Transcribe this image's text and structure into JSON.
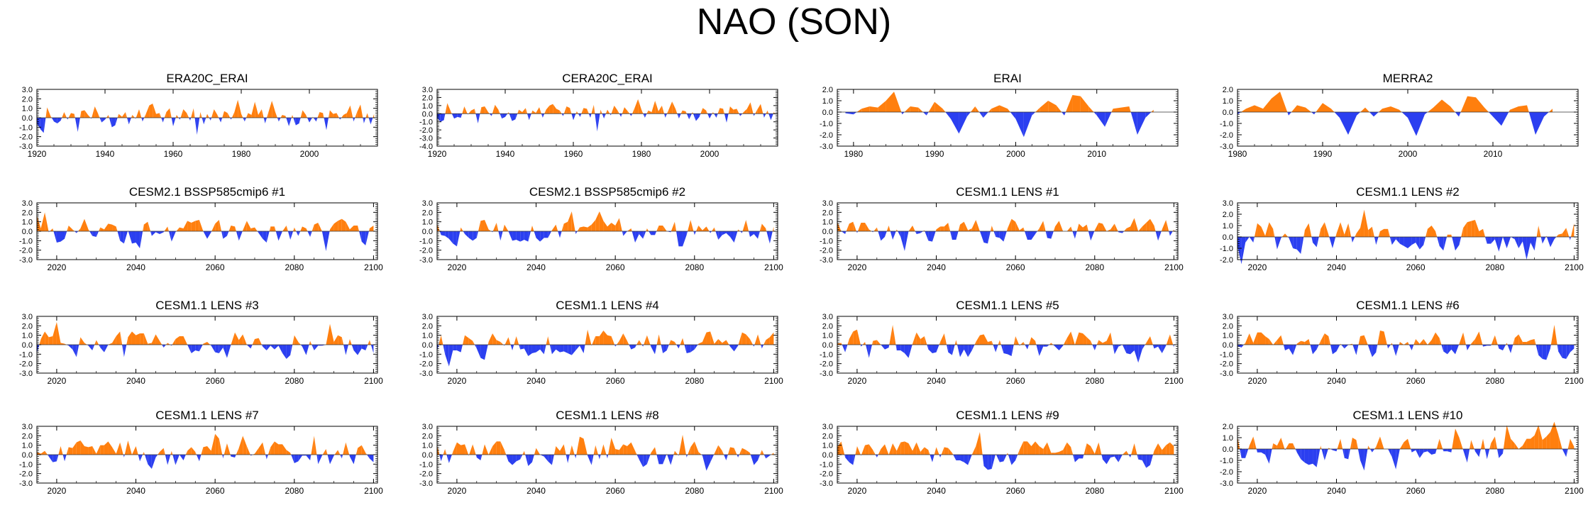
{
  "title": "NAO (SON)",
  "colors": {
    "positive": "#ff7f0e",
    "negative": "#2b3ff0",
    "axis": "#000000"
  },
  "chart_data": [
    {
      "type": "area",
      "title": "ERA20C_ERAI",
      "xlim": [
        1920,
        2020
      ],
      "xticks": [
        "1920",
        "1940",
        "1960",
        "1980",
        "2000"
      ],
      "ylim": [
        -3,
        3
      ],
      "yticks": [
        "3.0",
        "2.0",
        "1.0",
        "0.0",
        "-1.0",
        "-2.0",
        "-3.0"
      ],
      "x": [
        1920,
        1921,
        1922,
        1923,
        1924,
        1925,
        1926,
        1927,
        1928,
        1929,
        1930,
        1931,
        1932,
        1933,
        1934,
        1935,
        1936,
        1937,
        1938,
        1939,
        1940,
        1941,
        1942,
        1943,
        1944,
        1945,
        1946,
        1947,
        1948,
        1949,
        1950,
        1951,
        1952,
        1953,
        1954,
        1955,
        1956,
        1957,
        1958,
        1959,
        1960,
        1961,
        1962,
        1963,
        1964,
        1965,
        1966,
        1967,
        1968,
        1969,
        1970,
        1971,
        1972,
        1973,
        1974,
        1975,
        1976,
        1977,
        1978,
        1979,
        1980,
        1981,
        1982,
        1983,
        1984,
        1985,
        1986,
        1987,
        1988,
        1989,
        1990,
        1991,
        1992,
        1993,
        1994,
        1995,
        1996,
        1997,
        1998,
        1999,
        2000,
        2001,
        2002,
        2003,
        2004,
        2005,
        2006,
        2007,
        2008,
        2009,
        2010,
        2011,
        2012,
        2013,
        2014,
        2015,
        2016,
        2017,
        2018,
        2019
      ],
      "values": [
        -0.6,
        -1.2,
        -1.6,
        1.1,
        0.2,
        -0.4,
        -0.6,
        -0.3,
        0.6,
        -0.2,
        0.5,
        0.4,
        -1.5,
        0.7,
        0.8,
        0.3,
        -0.1,
        1.2,
        0.4,
        -0.5,
        -0.2,
        0.3,
        -1.0,
        -0.8,
        0.4,
        0.1,
        0.6,
        -0.7,
        0.3,
        -0.1,
        0.9,
        -0.4,
        0.4,
        1.3,
        1.5,
        0.4,
        0.5,
        -0.5,
        0.6,
        1.0,
        -0.9,
        0.3,
        -0.2,
        0.9,
        0.5,
        -0.3,
        1.0,
        -1.8,
        0.6,
        -0.7,
        0.4,
        -0.3,
        0.9,
        0.3,
        -0.5,
        0.7,
        0.5,
        -0.2,
        0.6,
        1.9,
        0.4,
        -0.4,
        0.5,
        0.3,
        1.7,
        0.3,
        0.9,
        -0.6,
        0.6,
        1.8,
        0.6,
        -0.4,
        0.3,
        0.2,
        -0.9,
        0.3,
        -0.8,
        -0.6,
        0.8,
        0.3,
        -0.5,
        0.1,
        -0.4,
        0.6,
        0.5,
        -1.3,
        0.8,
        0.4,
        0.5,
        -0.2,
        0.3,
        0.5,
        1.3,
        -0.4,
        0.6,
        1.4,
        -0.6,
        0.5,
        -0.7,
        0.4
      ]
    },
    {
      "type": "area",
      "title": "CERA20C_ERAI",
      "xlim": [
        1920,
        2020
      ],
      "xticks": [
        "1920",
        "1940",
        "1960",
        "1980",
        "2000"
      ],
      "ylim": [
        -4,
        3
      ],
      "yticks": [
        "3.0",
        "2.0",
        "1.0",
        "0.0",
        "-1.0",
        "-2.0",
        "-3.0",
        "-4.0"
      ],
      "x": [
        1920,
        1921,
        1922,
        1923,
        1924,
        1925,
        1926,
        1927,
        1928,
        1929,
        1930,
        1931,
        1932,
        1933,
        1934,
        1935,
        1936,
        1937,
        1938,
        1939,
        1940,
        1941,
        1942,
        1943,
        1944,
        1945,
        1946,
        1947,
        1948,
        1949,
        1950,
        1951,
        1952,
        1953,
        1954,
        1955,
        1956,
        1957,
        1958,
        1959,
        1960,
        1961,
        1962,
        1963,
        1964,
        1965,
        1966,
        1967,
        1968,
        1969,
        1970,
        1971,
        1972,
        1973,
        1974,
        1975,
        1976,
        1977,
        1978,
        1979,
        1980,
        1981,
        1982,
        1983,
        1984,
        1985,
        1986,
        1987,
        1988,
        1989,
        1990,
        1991,
        1992,
        1993,
        1994,
        1995,
        1996,
        1997,
        1998,
        1999,
        2000,
        2001,
        2002,
        2003,
        2004,
        2005,
        2006,
        2007,
        2008,
        2009,
        2010,
        2011,
        2012,
        2013,
        2014,
        2015,
        2016,
        2017,
        2018,
        2019
      ],
      "values": [
        -0.5,
        -1.0,
        -0.8,
        1.3,
        0.3,
        -0.6,
        -0.4,
        -0.5,
        0.9,
        -0.1,
        0.4,
        0.6,
        -1.2,
        0.8,
        0.9,
        0.2,
        -0.3,
        1.1,
        0.5,
        -0.6,
        -0.4,
        0.2,
        -0.9,
        -0.7,
        0.5,
        0.2,
        0.7,
        -0.8,
        0.4,
        0.1,
        0.8,
        -0.5,
        0.5,
        1.0,
        1.2,
        0.6,
        0.4,
        -0.3,
        0.9,
        0.7,
        -0.8,
        0.3,
        -0.4,
        0.7,
        0.6,
        -0.5,
        1.1,
        -2.2,
        0.5,
        -0.6,
        0.5,
        -0.2,
        1.0,
        0.4,
        -0.4,
        0.8,
        0.3,
        -0.3,
        0.7,
        1.8,
        0.5,
        -0.5,
        0.4,
        0.2,
        1.6,
        0.3,
        1.0,
        -0.5,
        0.5,
        1.5,
        0.6,
        -0.6,
        0.4,
        0.3,
        -0.7,
        0.2,
        -0.9,
        -0.4,
        0.7,
        0.4,
        -0.6,
        0.2,
        -0.5,
        0.7,
        0.6,
        -1.1,
        0.9,
        0.5,
        0.6,
        -0.3,
        0.2,
        0.6,
        1.4,
        -0.3,
        0.5,
        1.2,
        -0.5,
        0.4,
        -0.8,
        0.3
      ]
    },
    {
      "type": "area",
      "title": "ERAI",
      "xlim": [
        1978,
        2020
      ],
      "xticks": [
        "1980",
        "1990",
        "2000",
        "2010"
      ],
      "ylim": [
        -3,
        2
      ],
      "yticks": [
        "2.0",
        "1.0",
        "0.0",
        "-1.0",
        "-2.0",
        "-3.0"
      ],
      "x": [
        1979,
        1980,
        1981,
        1982,
        1983,
        1984,
        1985,
        1986,
        1987,
        1988,
        1989,
        1990,
        1991,
        1992,
        1993,
        1994,
        1995,
        1996,
        1997,
        1998,
        1999,
        2000,
        2001,
        2002,
        2003,
        2004,
        2005,
        2006,
        2007,
        2008,
        2009,
        2010,
        2011,
        2012,
        2013,
        2014,
        2015,
        2016,
        2017
      ],
      "values": [
        -0.1,
        -0.2,
        0.3,
        0.5,
        0.4,
        1.0,
        1.8,
        -0.2,
        0.5,
        0.4,
        -0.3,
        0.9,
        0.3,
        -0.6,
        -1.9,
        -0.4,
        0.5,
        -0.5,
        0.3,
        0.6,
        0.3,
        -0.6,
        -2.2,
        -0.3,
        0.4,
        1.0,
        0.6,
        -0.3,
        1.5,
        1.4,
        0.5,
        -0.3,
        -1.3,
        0.3,
        0.4,
        0.5,
        -2.0,
        -0.5,
        0.2
      ]
    },
    {
      "type": "area",
      "title": "MERRA2",
      "xlim": [
        1980,
        2020
      ],
      "xticks": [
        "1980",
        "1990",
        "2000",
        "2010"
      ],
      "ylim": [
        -3,
        2
      ],
      "yticks": [
        "2.0",
        "1.0",
        "0.0",
        "-1.0",
        "-2.0",
        "-3.0"
      ],
      "x": [
        1980,
        1981,
        1982,
        1983,
        1984,
        1985,
        1986,
        1987,
        1988,
        1989,
        1990,
        1991,
        1992,
        1993,
        1994,
        1995,
        1996,
        1997,
        1998,
        1999,
        2000,
        2001,
        2002,
        2003,
        2004,
        2005,
        2006,
        2007,
        2008,
        2009,
        2010,
        2011,
        2012,
        2013,
        2014,
        2015,
        2016,
        2017
      ],
      "values": [
        -0.2,
        0.3,
        0.6,
        0.3,
        1.2,
        1.8,
        -0.3,
        0.6,
        0.4,
        -0.2,
        0.8,
        0.3,
        -0.5,
        -2.0,
        -0.3,
        0.4,
        -0.4,
        0.3,
        0.5,
        0.2,
        -0.5,
        -2.1,
        -0.2,
        0.4,
        1.1,
        0.5,
        -0.4,
        1.4,
        1.3,
        0.4,
        -0.4,
        -1.2,
        0.2,
        0.5,
        0.6,
        -2.0,
        -0.4,
        0.3
      ]
    },
    {
      "type": "area",
      "title": "CESM2.1 BSSP585cmip6 #1",
      "xlim": [
        2015,
        2101
      ],
      "xticks": [
        "2020",
        "2040",
        "2060",
        "2080",
        "2100"
      ],
      "ylim": [
        -3,
        3
      ],
      "yticks": [
        "3.0",
        "2.0",
        "1.0",
        "0.0",
        "-1.0",
        "-2.0",
        "-3.0"
      ],
      "seed": 11
    },
    {
      "type": "area",
      "title": "CESM2.1 BSSP585cmip6 #2",
      "xlim": [
        2015,
        2101
      ],
      "xticks": [
        "2020",
        "2040",
        "2060",
        "2080",
        "2100"
      ],
      "ylim": [
        -3,
        3
      ],
      "yticks": [
        "3.0",
        "2.0",
        "1.0",
        "0.0",
        "-1.0",
        "-2.0",
        "-3.0"
      ],
      "seed": 23
    },
    {
      "type": "area",
      "title": "CESM1.1 LENS #1",
      "xlim": [
        2015,
        2101
      ],
      "xticks": [
        "2020",
        "2040",
        "2060",
        "2080",
        "2100"
      ],
      "ylim": [
        -3,
        3
      ],
      "yticks": [
        "3.0",
        "2.0",
        "1.0",
        "0.0",
        "-1.0",
        "-2.0",
        "-3.0"
      ],
      "seed": 37
    },
    {
      "type": "area",
      "title": "CESM1.1 LENS #2",
      "xlim": [
        2015,
        2101
      ],
      "xticks": [
        "2020",
        "2040",
        "2060",
        "2080",
        "2100"
      ],
      "ylim": [
        -2,
        3
      ],
      "yticks": [
        "3.0",
        "2.0",
        "1.0",
        "0.0",
        "-1.0",
        "-2.0"
      ],
      "seed": 41
    },
    {
      "type": "area",
      "title": "CESM1.1 LENS #3",
      "xlim": [
        2015,
        2101
      ],
      "xticks": [
        "2020",
        "2040",
        "2060",
        "2080",
        "2100"
      ],
      "ylim": [
        -3,
        3
      ],
      "yticks": [
        "3.0",
        "2.0",
        "1.0",
        "0.0",
        "-1.0",
        "-2.0",
        "-3.0"
      ],
      "seed": 53
    },
    {
      "type": "area",
      "title": "CESM1.1 LENS #4",
      "xlim": [
        2015,
        2101
      ],
      "xticks": [
        "2020",
        "2040",
        "2060",
        "2080",
        "2100"
      ],
      "ylim": [
        -3,
        3
      ],
      "yticks": [
        "3.0",
        "2.0",
        "1.0",
        "0.0",
        "-1.0",
        "-2.0",
        "-3.0"
      ],
      "seed": 67
    },
    {
      "type": "area",
      "title": "CESM1.1 LENS #5",
      "xlim": [
        2015,
        2101
      ],
      "xticks": [
        "2020",
        "2040",
        "2060",
        "2080",
        "2100"
      ],
      "ylim": [
        -3,
        3
      ],
      "yticks": [
        "3.0",
        "2.0",
        "1.0",
        "0.0",
        "-1.0",
        "-2.0",
        "-3.0"
      ],
      "seed": 71
    },
    {
      "type": "area",
      "title": "CESM1.1 LENS #6",
      "xlim": [
        2015,
        2101
      ],
      "xticks": [
        "2020",
        "2040",
        "2060",
        "2080",
        "2100"
      ],
      "ylim": [
        -3,
        3
      ],
      "yticks": [
        "3.0",
        "2.0",
        "1.0",
        "0.0",
        "-1.0",
        "-2.0",
        "-3.0"
      ],
      "seed": 83
    },
    {
      "type": "area",
      "title": "CESM1.1 LENS #7",
      "xlim": [
        2015,
        2101
      ],
      "xticks": [
        "2020",
        "2040",
        "2060",
        "2080",
        "2100"
      ],
      "ylim": [
        -3,
        3
      ],
      "yticks": [
        "3.0",
        "2.0",
        "1.0",
        "0.0",
        "-1.0",
        "-2.0",
        "-3.0"
      ],
      "seed": 97
    },
    {
      "type": "area",
      "title": "CESM1.1 LENS #8",
      "xlim": [
        2015,
        2101
      ],
      "xticks": [
        "2020",
        "2040",
        "2060",
        "2080",
        "2100"
      ],
      "ylim": [
        -3,
        3
      ],
      "yticks": [
        "3.0",
        "2.0",
        "1.0",
        "0.0",
        "-1.0",
        "-2.0",
        "-3.0"
      ],
      "seed": 101
    },
    {
      "type": "area",
      "title": "CESM1.1 LENS #9",
      "xlim": [
        2015,
        2101
      ],
      "xticks": [
        "2020",
        "2040",
        "2060",
        "2080",
        "2100"
      ],
      "ylim": [
        -3,
        3
      ],
      "yticks": [
        "3.0",
        "2.0",
        "1.0",
        "0.0",
        "-1.0",
        "-2.0",
        "-3.0"
      ],
      "seed": 113
    },
    {
      "type": "area",
      "title": "CESM1.1 LENS #10",
      "xlim": [
        2015,
        2101
      ],
      "xticks": [
        "2020",
        "2040",
        "2060",
        "2080",
        "2100"
      ],
      "ylim": [
        -3,
        2
      ],
      "yticks": [
        "2.0",
        "1.0",
        "0.0",
        "-1.0",
        "-2.0",
        "-3.0"
      ],
      "seed": 127
    }
  ]
}
